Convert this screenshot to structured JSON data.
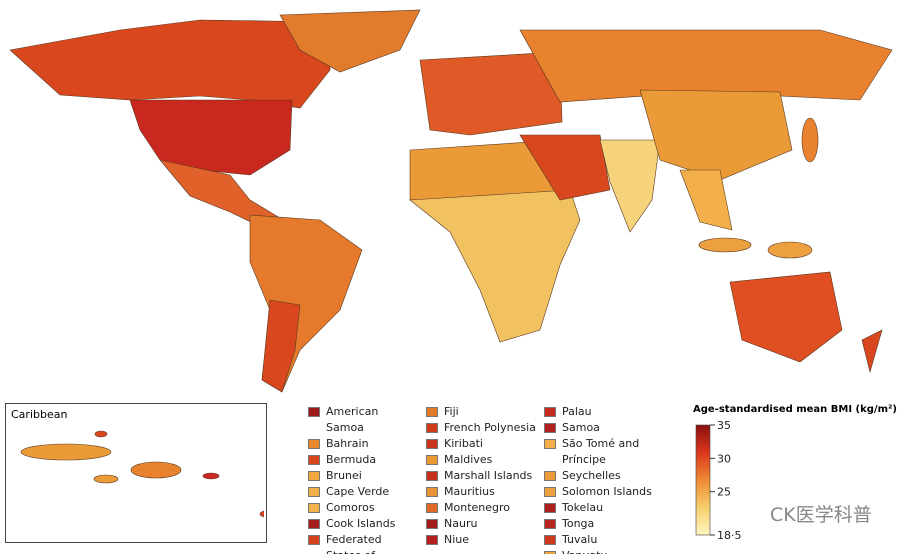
{
  "inset": {
    "title": "Caribbean"
  },
  "small_countries": {
    "columns": [
      [
        {
          "name": "American Samoa",
          "color": "#9e1a1a"
        },
        {
          "name": "Bahrain",
          "color": "#e8892f"
        },
        {
          "name": "Bermuda",
          "color": "#d9471f"
        },
        {
          "name": "Brunei",
          "color": "#f3a540"
        },
        {
          "name": "Cape Verde",
          "color": "#f2b04a"
        },
        {
          "name": "Comoros",
          "color": "#f3b24e"
        },
        {
          "name": "Cook Islands",
          "color": "#a51c1c"
        },
        {
          "name": "Federated States of Micronesia",
          "color": "#d6421e"
        }
      ],
      [
        {
          "name": "Fiji",
          "color": "#e07a2a"
        },
        {
          "name": "French Polynesia",
          "color": "#cf3a1c"
        },
        {
          "name": "Kiribati",
          "color": "#c9331c"
        },
        {
          "name": "Maldives",
          "color": "#eb9a38"
        },
        {
          "name": "Marshall Islands",
          "color": "#c4301c"
        },
        {
          "name": "Mauritius",
          "color": "#e9923a"
        },
        {
          "name": "Montenegro",
          "color": "#dd6a26"
        },
        {
          "name": "Nauru",
          "color": "#a21a1a"
        },
        {
          "name": "Niue",
          "color": "#b42020"
        }
      ],
      [
        {
          "name": "Palau",
          "color": "#c42a1e"
        },
        {
          "name": "Samoa",
          "color": "#b02020"
        },
        {
          "name": "São Tomé and Príncipe",
          "color": "#f3b04a"
        },
        {
          "name": "Seychelles",
          "color": "#eb9a38"
        },
        {
          "name": "Solomon Islands",
          "color": "#eea040"
        },
        {
          "name": "Tokelau",
          "color": "#ad1e1e"
        },
        {
          "name": "Tonga",
          "color": "#b82520"
        },
        {
          "name": "Tuvalu",
          "color": "#cc3a1e"
        },
        {
          "name": "Vanuatu",
          "color": "#f0a644"
        }
      ]
    ]
  },
  "colorbar": {
    "title": "Age-standardised mean BMI (kg/m²)",
    "lim": [
      18.5,
      35
    ],
    "ticks": [
      35,
      30,
      25,
      {
        "value": 18.5,
        "label": "18·5"
      }
    ],
    "colors": [
      "#8b0f0f",
      "#d9361c",
      "#ef8a34",
      "#f7cf6c",
      "#fff6c0"
    ]
  },
  "watermark": "CK医学科普"
}
